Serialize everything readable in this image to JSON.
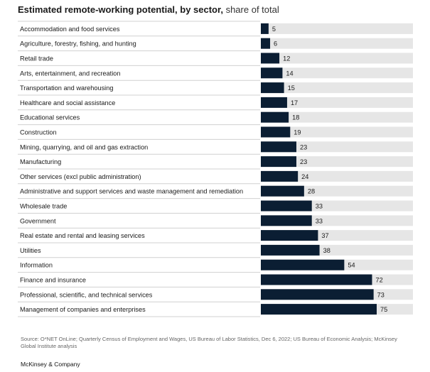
{
  "header": {
    "title_bold": "Estimated remote-working potential, by sector,",
    "title_light": "share of total"
  },
  "chart_data": {
    "type": "bar",
    "orientation": "horizontal",
    "title": "Estimated remote-working potential, by sector, share of total",
    "xlabel": "",
    "ylabel": "",
    "xlim": [
      0,
      100
    ],
    "grid": false,
    "colors": {
      "bar": "#0b1e33",
      "track": "#e6e6e6",
      "divider": "#d0d0d0"
    },
    "categories": [
      "Accommodation and food services",
      "Agriculture, forestry, fishing, and hunting",
      "Retail trade",
      "Arts, entertainment, and recreation",
      "Transportation and warehousing",
      "Healthcare and social assistance",
      "Educational services",
      "Construction",
      "Mining, quarrying, and oil and gas extraction",
      "Manufacturing",
      "Other services (excl public administration)",
      "Administrative and support services and waste management and remediation",
      "Wholesale trade",
      "Government",
      "Real estate and rental and leasing services",
      "Utilities",
      "Information",
      "Finance and insurance",
      "Professional, scientific, and technical services",
      "Management of companies and enterprises"
    ],
    "values": [
      5,
      6,
      12,
      14,
      15,
      17,
      18,
      19,
      23,
      23,
      24,
      28,
      33,
      33,
      37,
      38,
      54,
      72,
      73,
      75
    ]
  },
  "footer": {
    "source": "Source: O*NET OnLine; Quarterly Census of Employment and Wages, US Bureau of Labor Statistics, Dec 6, 2022; US Bureau of Economic Analysis; McKinsey Global Institute analysis",
    "brand": "McKinsey & Company"
  }
}
